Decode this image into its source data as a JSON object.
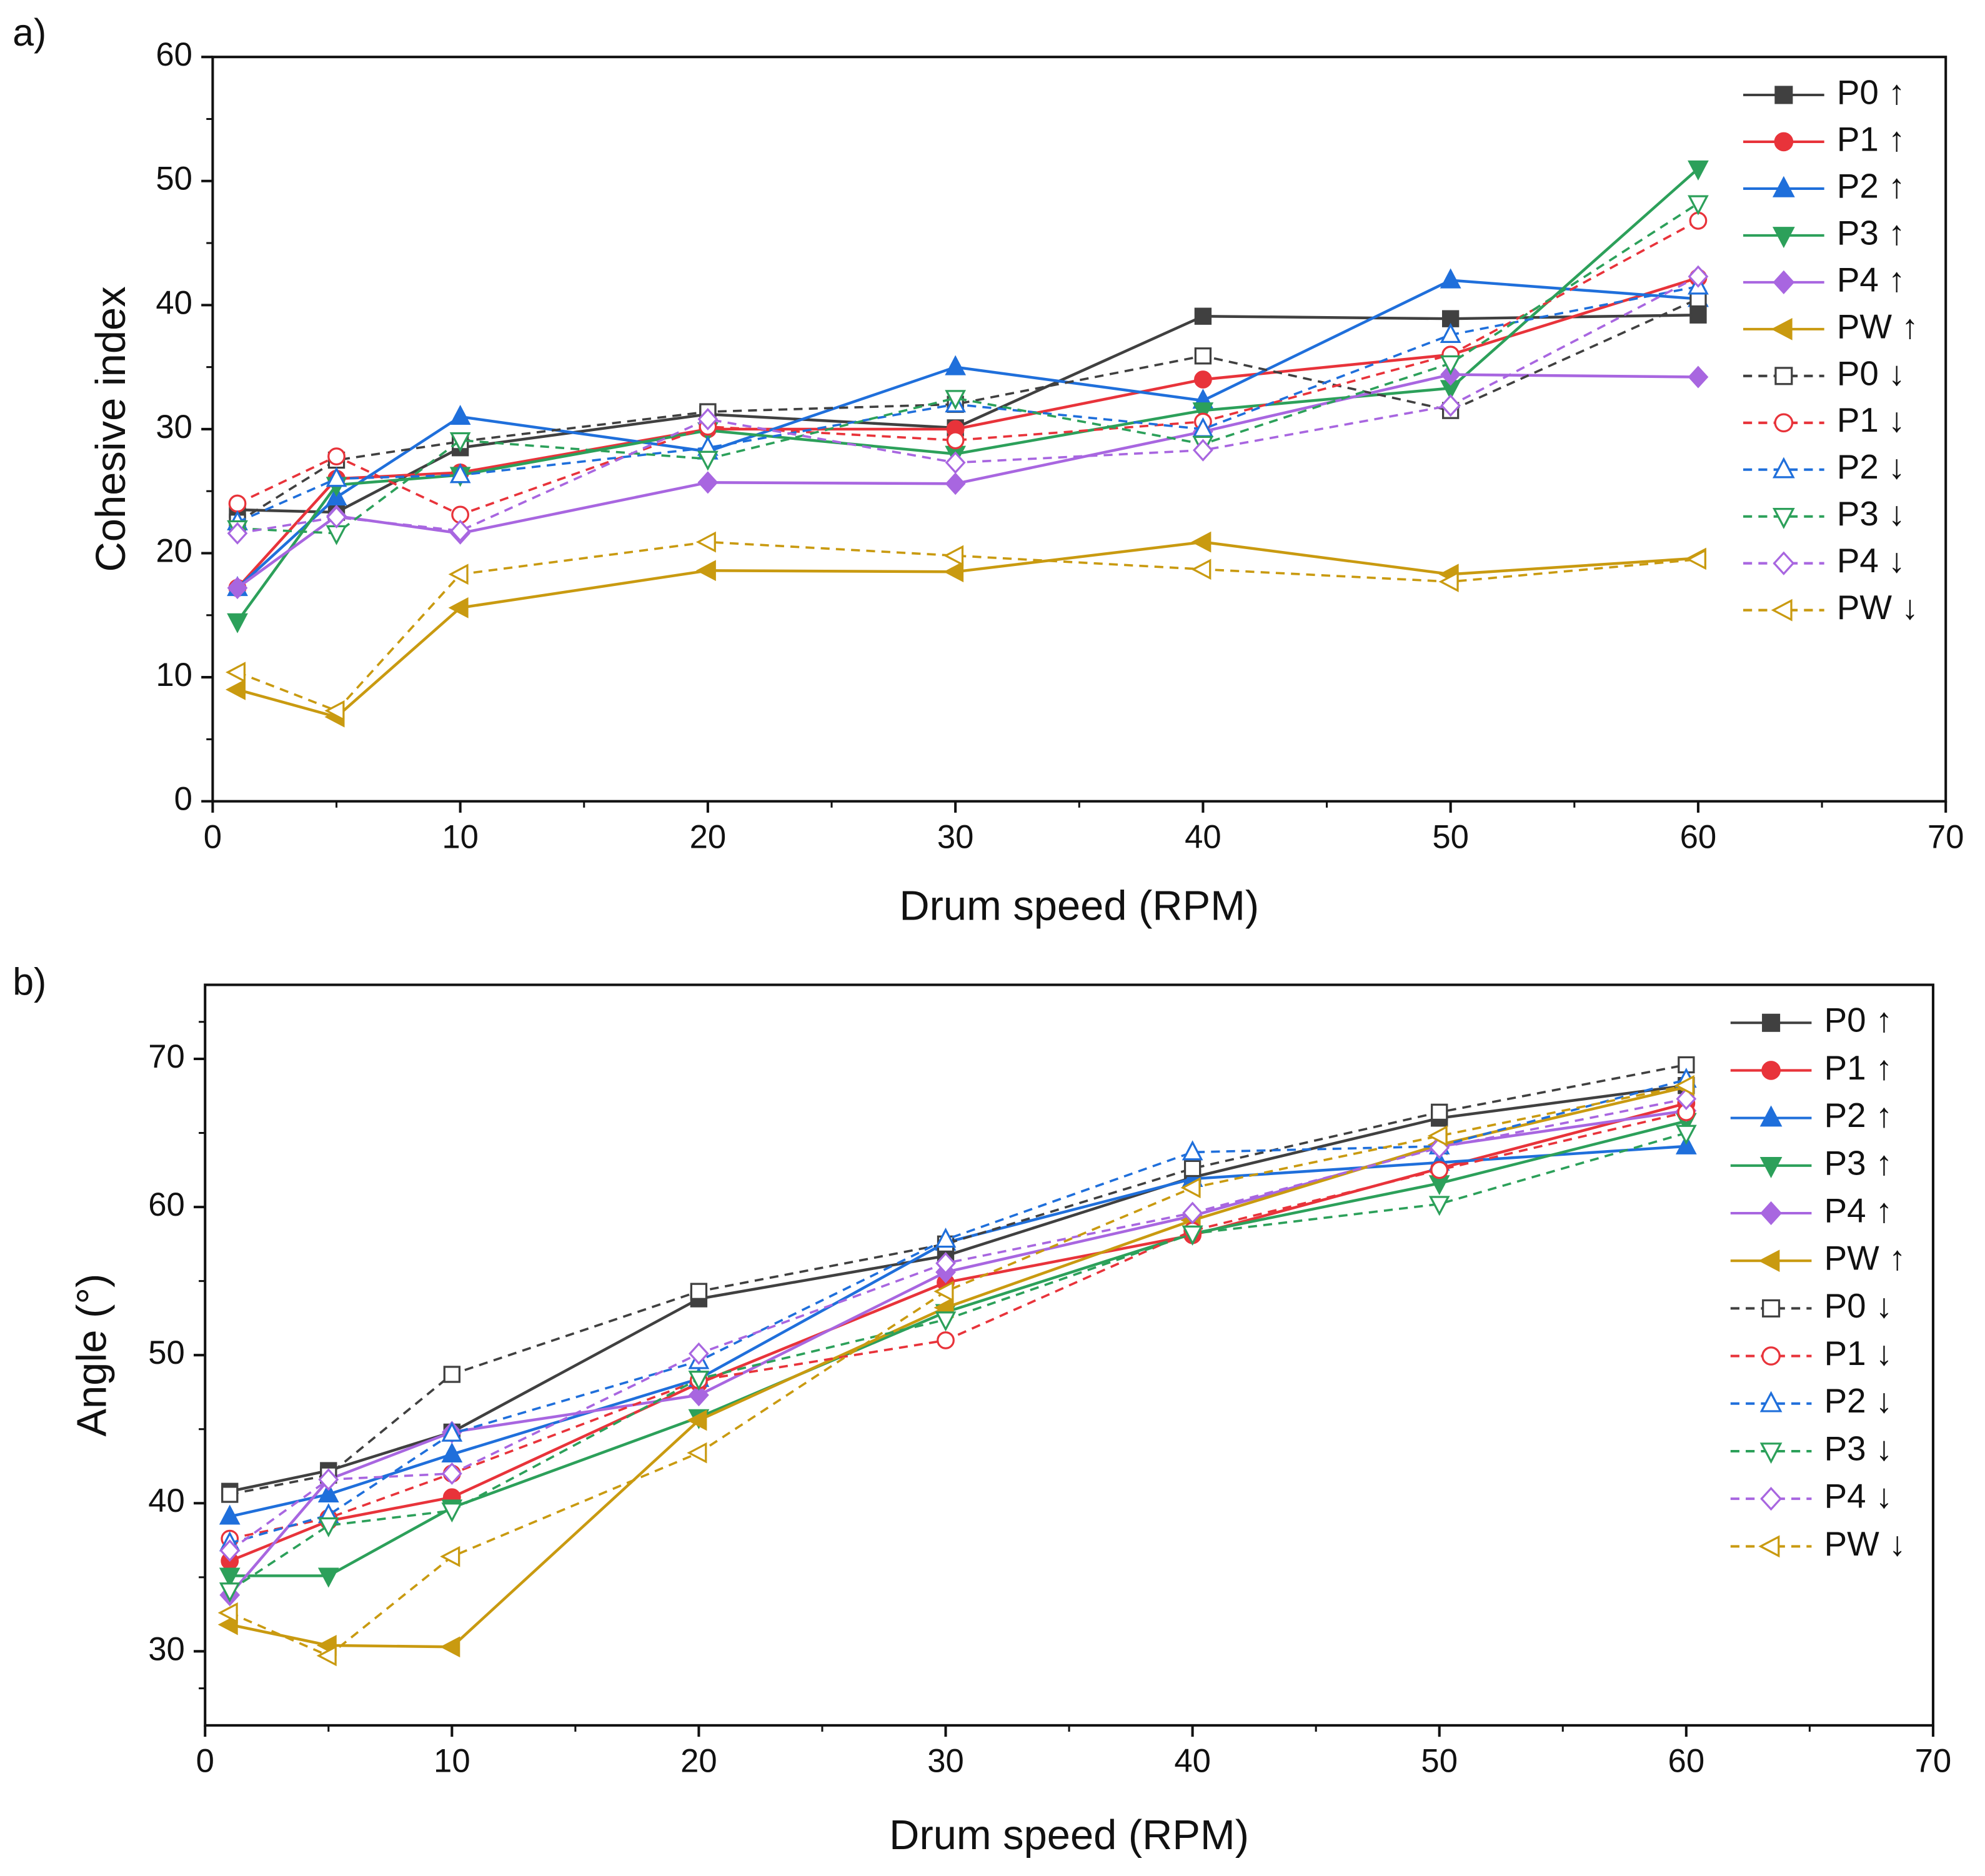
{
  "chart_data": [
    {
      "type": "line",
      "panel_label": "a)",
      "xlabel": "Drum speed (RPM)",
      "ylabel": "Cohesive index",
      "x": [
        1,
        5,
        10,
        20,
        30,
        40,
        50,
        60
      ],
      "xlim": [
        0,
        70
      ],
      "xticks": [
        0,
        10,
        20,
        30,
        40,
        50,
        60,
        70
      ],
      "ylim": [
        0,
        60
      ],
      "yticks": [
        0,
        10,
        20,
        30,
        40,
        50,
        60
      ],
      "grid": false,
      "legend": "upper right",
      "series": [
        {
          "name": "P0 ↑",
          "color": "#404040",
          "marker": "square",
          "line": "solid",
          "filled": true,
          "values": [
            23.5,
            23.3,
            28.5,
            31.2,
            30.1,
            39.1,
            38.9,
            39.2
          ]
        },
        {
          "name": "P1 ↑",
          "color": "#e8333a",
          "marker": "circle",
          "line": "solid",
          "filled": true,
          "values": [
            17.2,
            26,
            26.5,
            30,
            30,
            34,
            36,
            42.2
          ]
        },
        {
          "name": "P2 ↑",
          "color": "#1f6fdb",
          "marker": "triangle-up",
          "line": "solid",
          "filled": true,
          "values": [
            17.2,
            24.5,
            31,
            28.2,
            35,
            32.3,
            42,
            40.5
          ]
        },
        {
          "name": "P3 ↑",
          "color": "#2ca05a",
          "marker": "triangle-down",
          "line": "solid",
          "filled": true,
          "values": [
            14.5,
            25.5,
            26.3,
            29.9,
            28,
            31.5,
            33.3,
            51
          ]
        },
        {
          "name": "P4 ↑",
          "color": "#a866e0",
          "marker": "diamond",
          "line": "solid",
          "filled": true,
          "values": [
            17.2,
            23,
            21.6,
            25.7,
            25.6,
            29.8,
            34.4,
            34.2
          ]
        },
        {
          "name": "PW ↑",
          "color": "#c99a10",
          "marker": "triangle-left",
          "line": "solid",
          "filled": true,
          "values": [
            9,
            6.8,
            15.6,
            18.6,
            18.5,
            20.9,
            18.3,
            19.6
          ]
        },
        {
          "name": "P0 ↓",
          "color": "#404040",
          "marker": "square",
          "line": "dash",
          "filled": false,
          "values": [
            22.5,
            27.5,
            29,
            31.4,
            32,
            35.9,
            31.5,
            40.5
          ]
        },
        {
          "name": "P1 ↓",
          "color": "#e8333a",
          "marker": "circle",
          "line": "dash",
          "filled": false,
          "values": [
            24,
            27.8,
            23.1,
            30.2,
            29.1,
            30.6,
            36,
            46.8
          ]
        },
        {
          "name": "P2 ↓",
          "color": "#1f6fdb",
          "marker": "triangle-up",
          "line": "dash",
          "filled": false,
          "values": [
            22.5,
            26,
            26.3,
            28.5,
            32,
            30,
            37.6,
            41.5
          ]
        },
        {
          "name": "P3 ↓",
          "color": "#2ca05a",
          "marker": "triangle-down",
          "line": "dash",
          "filled": false,
          "values": [
            22,
            21.6,
            29.1,
            27.6,
            32.5,
            28.8,
            35.3,
            48.2
          ]
        },
        {
          "name": "P4 ↓",
          "color": "#a866e0",
          "marker": "diamond",
          "line": "dash",
          "filled": false,
          "values": [
            21.6,
            22.9,
            21.8,
            30.8,
            27.3,
            28.3,
            31.9,
            42.3
          ]
        },
        {
          "name": "PW ↓",
          "color": "#c99a10",
          "marker": "triangle-left",
          "line": "dash",
          "filled": false,
          "values": [
            10.4,
            7.3,
            18.3,
            20.9,
            19.8,
            18.7,
            17.7,
            19.5
          ]
        }
      ]
    },
    {
      "type": "line",
      "panel_label": "b)",
      "xlabel": "Drum speed (RPM)",
      "ylabel": "Angle (°)",
      "x": [
        1,
        5,
        10,
        20,
        30,
        40,
        50,
        60
      ],
      "xlim": [
        0,
        70
      ],
      "xticks": [
        0,
        10,
        20,
        30,
        40,
        50,
        60,
        70
      ],
      "ylim": [
        25,
        75
      ],
      "yticks": [
        30,
        40,
        50,
        60,
        70
      ],
      "grid": false,
      "legend": "upper right",
      "series": [
        {
          "name": "P0 ↑",
          "color": "#404040",
          "marker": "square",
          "line": "solid",
          "filled": true,
          "values": [
            40.8,
            42.2,
            44.8,
            53.8,
            56.7,
            62,
            66,
            68.2
          ]
        },
        {
          "name": "P1 ↑",
          "color": "#e8333a",
          "marker": "circle",
          "line": "solid",
          "filled": true,
          "values": [
            36.1,
            38.8,
            40.4,
            48.1,
            54.9,
            58.1,
            62.6,
            67
          ]
        },
        {
          "name": "P2 ↑",
          "color": "#1f6fdb",
          "marker": "triangle-up",
          "line": "solid",
          "filled": true,
          "values": [
            39.1,
            40.6,
            43.3,
            48.4,
            57.6,
            61.9,
            63,
            64.1
          ]
        },
        {
          "name": "P3 ↑",
          "color": "#2ca05a",
          "marker": "triangle-down",
          "line": "solid",
          "filled": true,
          "values": [
            35.1,
            35.1,
            39.7,
            45.8,
            52.9,
            58.2,
            61.6,
            65.8
          ]
        },
        {
          "name": "P4 ↑",
          "color": "#a866e0",
          "marker": "diamond",
          "line": "solid",
          "filled": true,
          "values": [
            33.8,
            41.6,
            44.8,
            47.3,
            55.6,
            59.4,
            64.1,
            66.5
          ]
        },
        {
          "name": "PW ↑",
          "color": "#c99a10",
          "marker": "triangle-left",
          "line": "solid",
          "filled": true,
          "values": [
            31.8,
            30.4,
            30.3,
            45.6,
            53.2,
            59.1,
            64.2,
            68.1
          ]
        },
        {
          "name": "P0 ↓",
          "color": "#404040",
          "marker": "square",
          "line": "dash",
          "filled": false,
          "values": [
            40.6,
            41.9,
            48.7,
            54.3,
            57.5,
            62.6,
            66.4,
            69.6
          ]
        },
        {
          "name": "P1 ↓",
          "color": "#e8333a",
          "marker": "circle",
          "line": "dash",
          "filled": false,
          "values": [
            37.6,
            39,
            42,
            48.3,
            51,
            58.4,
            62.5,
            66.4
          ]
        },
        {
          "name": "P2 ↓",
          "color": "#1f6fdb",
          "marker": "triangle-up",
          "line": "dash",
          "filled": false,
          "values": [
            37.3,
            39.2,
            44.7,
            49.6,
            57.8,
            63.7,
            64.1,
            68.6
          ]
        },
        {
          "name": "P3 ↓",
          "color": "#2ca05a",
          "marker": "triangle-down",
          "line": "dash",
          "filled": false,
          "values": [
            34.1,
            38.5,
            39.5,
            48.4,
            52.4,
            58.2,
            60.2,
            65
          ]
        },
        {
          "name": "P4 ↓",
          "color": "#a866e0",
          "marker": "diamond",
          "line": "dash",
          "filled": false,
          "values": [
            36.8,
            41.6,
            42,
            50.1,
            56.2,
            59.6,
            64,
            67.3
          ]
        },
        {
          "name": "PW ↓",
          "color": "#c99a10",
          "marker": "triangle-left",
          "line": "dash",
          "filled": false,
          "values": [
            32.6,
            29.7,
            36.4,
            43.4,
            54.3,
            61.3,
            64.8,
            68.2
          ]
        }
      ]
    }
  ]
}
